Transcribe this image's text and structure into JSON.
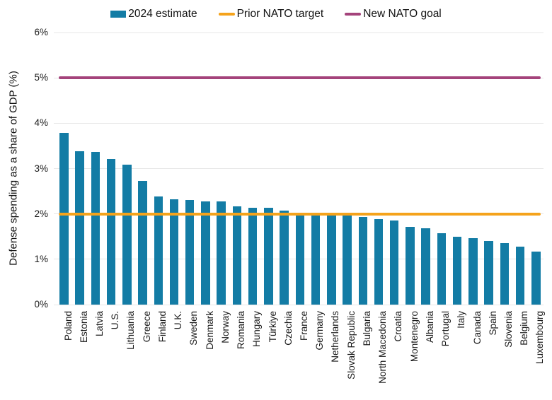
{
  "chart_data": {
    "type": "bar",
    "title": "",
    "xlabel": "",
    "ylabel": "Defense spending as a share of GDP (%)",
    "ylim": [
      0,
      6
    ],
    "grid": true,
    "yticks": [
      "0%",
      "1%",
      "2%",
      "3%",
      "4%",
      "5%",
      "6%"
    ],
    "series_name": "2024 estimate",
    "categories": [
      "Poland",
      "Estonia",
      "Latvia",
      "U.S.",
      "Lithuania",
      "Greece",
      "Finland",
      "U.K.",
      "Sweden",
      "Denmark",
      "Norway",
      "Romania",
      "Hungary",
      "Türkiye",
      "Czechia",
      "France",
      "Germany",
      "Netherlands",
      "Slovak Republic",
      "Bulgaria",
      "North Macedonia",
      "Croatia",
      "Montenegro",
      "Albania",
      "Portugal",
      "Italy",
      "Canada",
      "Spain",
      "Slovenia",
      "Belgium",
      "Luxembourg"
    ],
    "values": [
      3.79,
      3.38,
      3.36,
      3.21,
      3.09,
      2.73,
      2.39,
      2.33,
      2.3,
      2.28,
      2.27,
      2.16,
      2.14,
      2.13,
      2.08,
      2.02,
      2.0,
      1.98,
      1.96,
      1.93,
      1.88,
      1.86,
      1.71,
      1.69,
      1.57,
      1.5,
      1.46,
      1.41,
      1.36,
      1.28,
      1.17
    ],
    "reference_lines": [
      {
        "label": "Prior NATO target",
        "value": 2,
        "color": "#F5A31B"
      },
      {
        "label": "New NATO goal",
        "value": 5,
        "color": "#A4437B"
      }
    ],
    "legend": {
      "position": "top",
      "items": [
        {
          "label": "2024 estimate",
          "swatch": "rect",
          "color": "#137CA5"
        },
        {
          "label": "Prior NATO target",
          "swatch": "line",
          "color": "#F5A31B"
        },
        {
          "label": "New NATO goal",
          "swatch": "line",
          "color": "#A4437B"
        }
      ]
    },
    "colors": {
      "bar": "#137CA5",
      "prior_target_line": "#F5A31B",
      "new_goal_line": "#A4437B",
      "grid": "#E7E7E7",
      "background": "#FFFFFF"
    }
  }
}
